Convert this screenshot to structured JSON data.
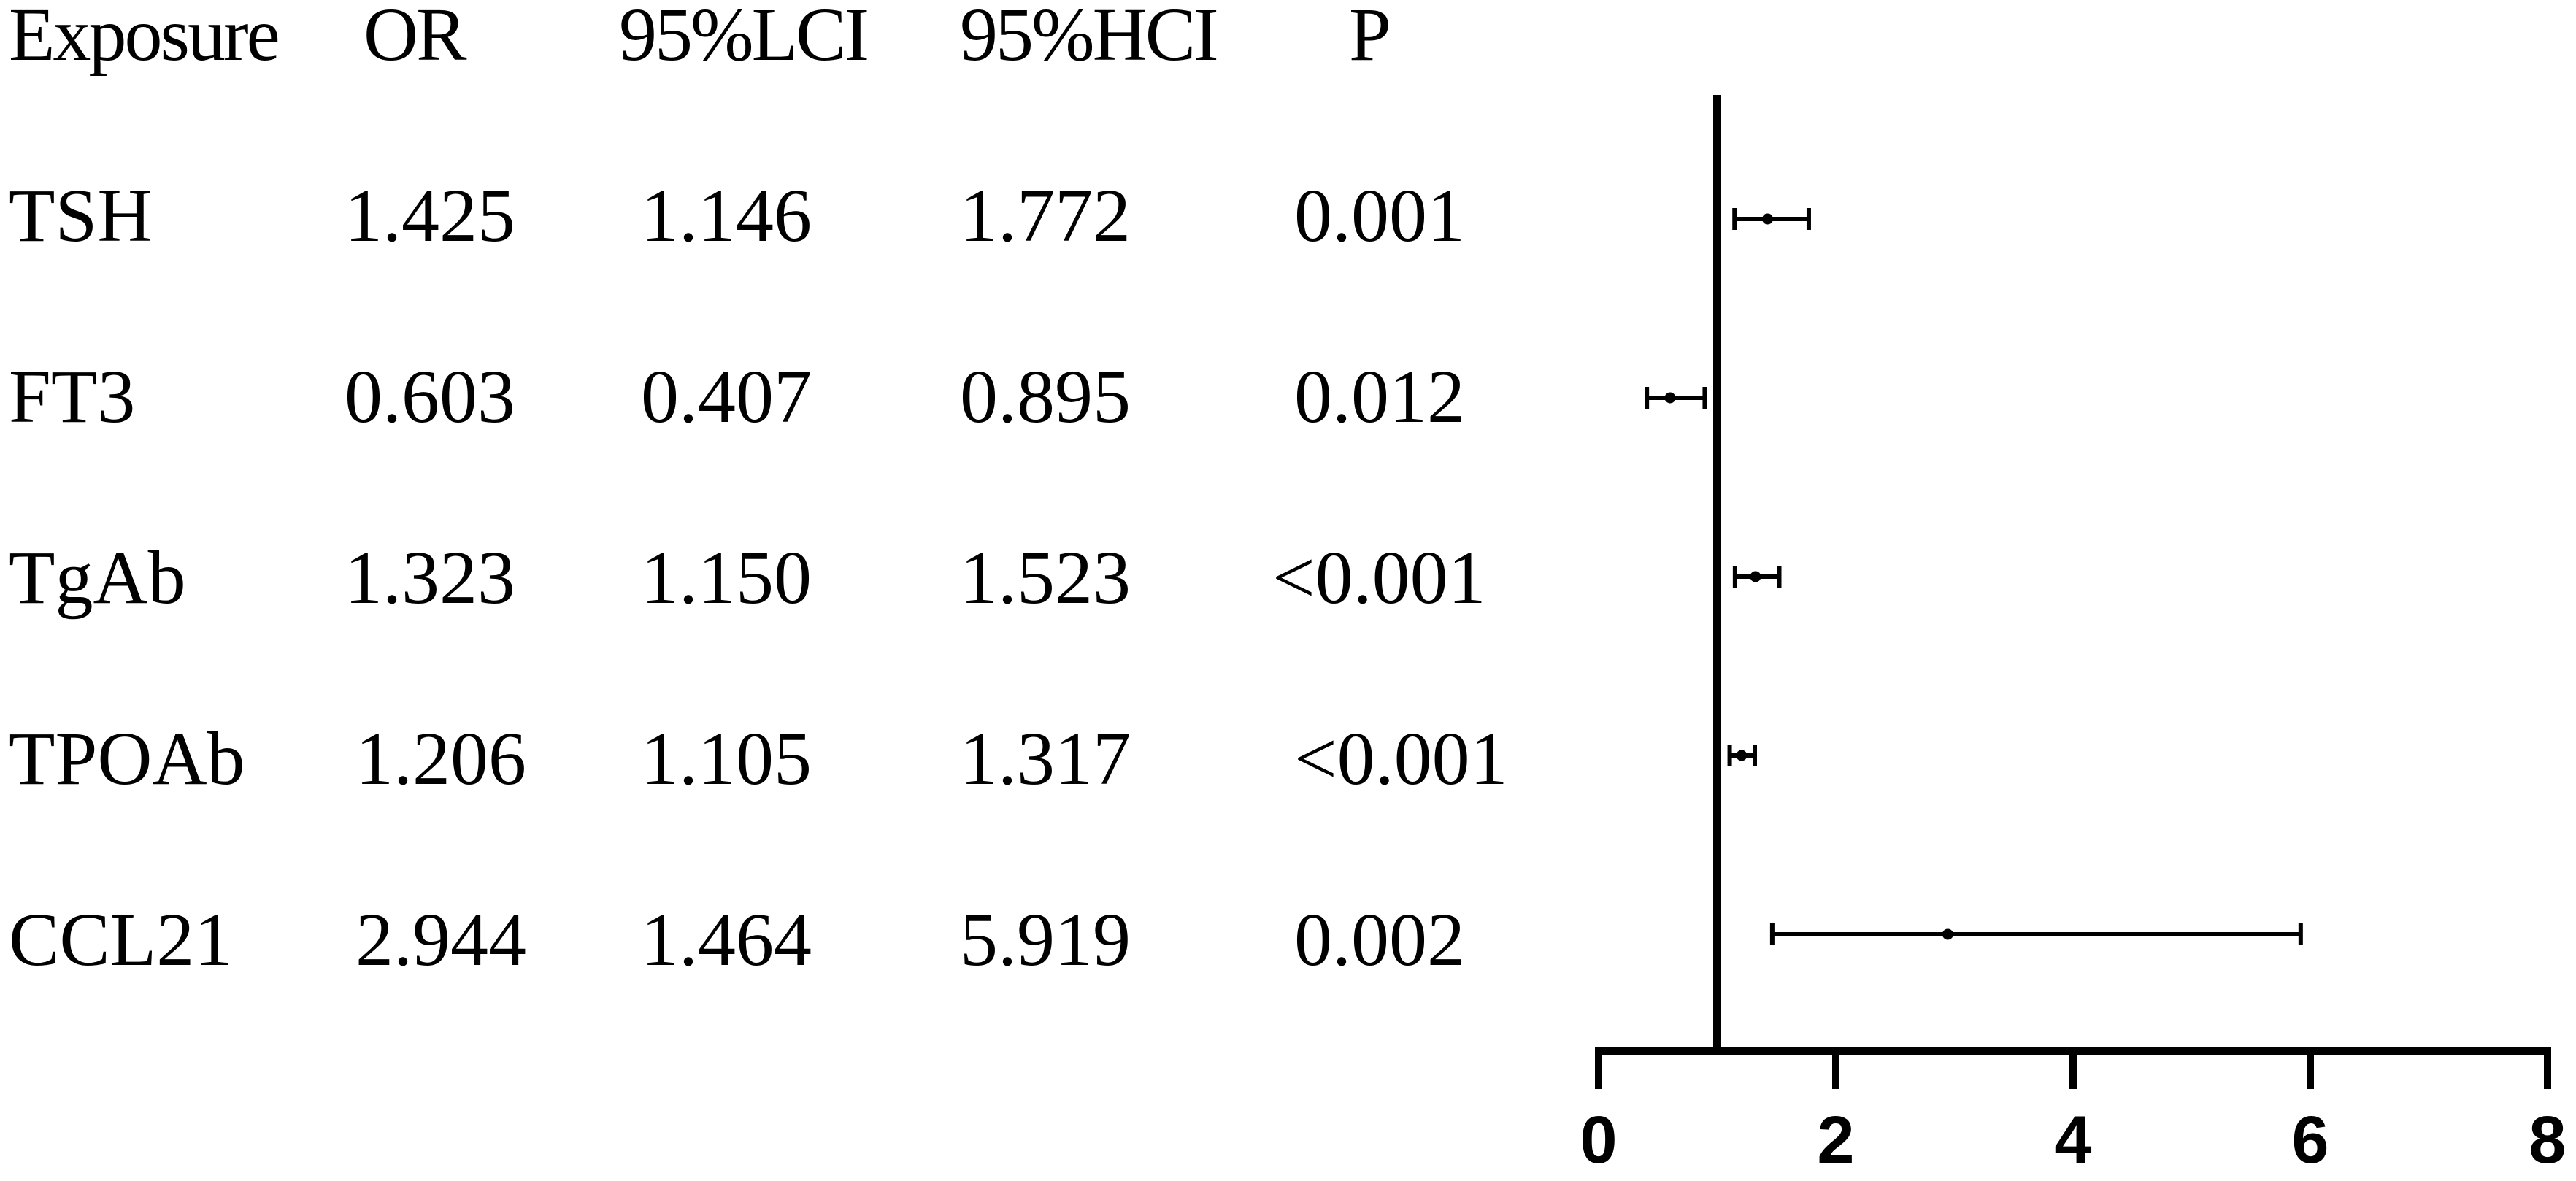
{
  "table": {
    "headers": [
      "Exposure",
      "OR",
      "95%LCI",
      "95%HCI",
      "P"
    ],
    "rows": [
      [
        "TSH",
        "1.425",
        "1.146",
        "1.772",
        "0.001"
      ],
      [
        "FT3",
        "0.603",
        "0.407",
        "0.895",
        "0.012"
      ],
      [
        "TgAb",
        "1.323",
        "1.150",
        "1.523",
        "<0.001"
      ],
      [
        "TPOAb",
        "1.206",
        "1.105",
        "1.317",
        "<0.001"
      ],
      [
        "CCL21",
        "2.944",
        "1.464",
        "5.919",
        "0.002"
      ]
    ]
  },
  "chart_data": {
    "type": "forest",
    "categories": [
      "TSH",
      "FT3",
      "TgAb",
      "TPOAb",
      "CCL21"
    ],
    "values": [
      1.425,
      0.603,
      1.323,
      1.206,
      2.944
    ],
    "lower": [
      1.146,
      0.407,
      1.15,
      1.105,
      1.464
    ],
    "upper": [
      1.772,
      0.895,
      1.523,
      1.317,
      5.919
    ],
    "reference_line": 1,
    "xlim": [
      0,
      8
    ],
    "xticks": [
      "0",
      "2",
      "4",
      "6",
      "8"
    ],
    "grid": false,
    "colors": {
      "marks": "#000000",
      "background": "#ffffff"
    }
  }
}
